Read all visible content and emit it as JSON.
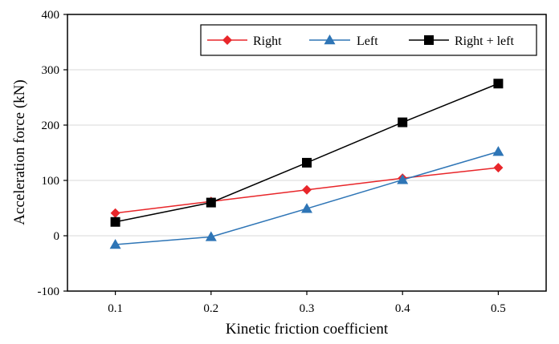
{
  "chart_data": {
    "type": "line",
    "title": "",
    "xlabel": "Kinetic friction coefficient",
    "ylabel": "Acceleration force (kN)",
    "x": [
      0.1,
      0.2,
      0.3,
      0.4,
      0.5
    ],
    "x_tick_labels": [
      "0.1",
      "0.2",
      "0.3",
      "0.4",
      "0.5"
    ],
    "xlim": [
      0.05,
      0.55
    ],
    "ylim": [
      -100,
      400
    ],
    "y_ticks": [
      -100,
      0,
      100,
      200,
      300,
      400
    ],
    "y_tick_labels": [
      "-100",
      "0",
      "100",
      "200",
      "300",
      "400"
    ],
    "grid": "horizontal",
    "legend_position": "top-right",
    "series": [
      {
        "name": "Right",
        "values": [
          41,
          62,
          83,
          104,
          123
        ],
        "color": "#e8262a",
        "marker": "diamond"
      },
      {
        "name": "Left",
        "values": [
          -16,
          -2,
          49,
          101,
          152
        ],
        "color": "#2e75b6",
        "marker": "triangle"
      },
      {
        "name": "Right + left",
        "values": [
          25,
          60,
          132,
          205,
          275
        ],
        "color": "#000000",
        "marker": "square"
      }
    ]
  }
}
